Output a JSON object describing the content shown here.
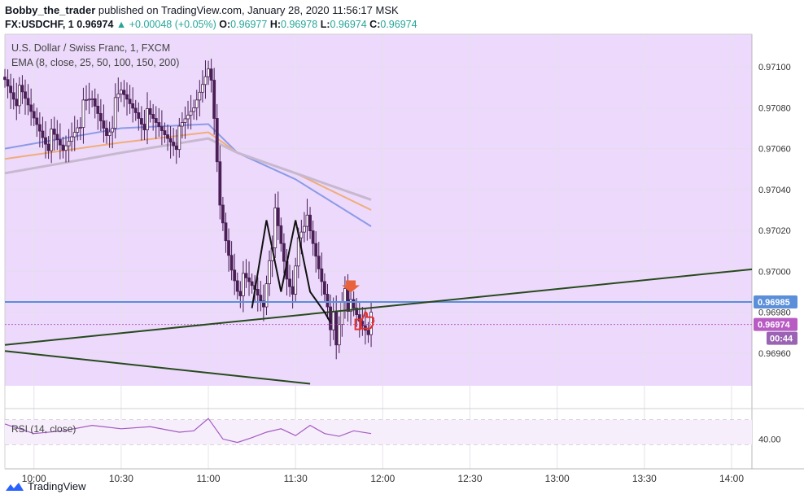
{
  "header": {
    "author": "Bobby_the_trader",
    "published_text": " published on TradingView.com, January 28, 2020 11:56:17 MSK",
    "symbol": "FX:USDCHF, 1",
    "last": "0.96974",
    "change": "▲ +0.00048 (+0.05%)",
    "o_label": "O:",
    "o": "0.96977",
    "h_label": "H:",
    "h": "0.96978",
    "l_label": "L:",
    "l": "0.96974",
    "c_label": "C:",
    "c": "0.96974"
  },
  "legend": {
    "instrument": "U.S. Dollar / Swiss Franc, 1, FXCM",
    "ema": "EMA (8, close, 25, 50, 100, 150, 200)",
    "rsi": "RSI (14, close)"
  },
  "price_badges": {
    "blue_line": "0.96985",
    "last_price": "0.96974",
    "countdown": "00:44"
  },
  "footer": {
    "brand": "TradingView"
  },
  "colors": {
    "background": "#ffffff",
    "session_shade": "#ecd9fb",
    "candle": "#4a1f56",
    "trendline": "#274a1d",
    "horizontal": "#5b8fd9",
    "last_price": "#b85cc4",
    "ema_blue": "#8c9ae8",
    "ema_orange": "#f0ad7a",
    "ema_gray": "#c7b8cf",
    "rsi": "#a35bc1",
    "arrow": "#e8623c",
    "thumb": "#e23030"
  },
  "icons": [
    "down-arrow-icon",
    "thumbs-up-icon",
    "tradingview-logo-icon"
  ],
  "chart_data": {
    "type": "candlestick",
    "title": "U.S. Dollar / Swiss Franc, 1, FXCM",
    "x_ticks": [
      "10:00",
      "10:30",
      "11:00",
      "11:30",
      "12:00",
      "12:30",
      "13:00",
      "13:30",
      "14:00"
    ],
    "y_ticks": [
      0.9696,
      0.9698,
      0.97,
      0.9702,
      0.9704,
      0.9706,
      0.9708,
      0.971
    ],
    "y_ticks_labels": [
      "0.96960",
      "0.96980",
      "0.97000",
      "0.97020",
      "0.97040",
      "0.97060",
      "0.97080",
      "0.97100"
    ],
    "ylim": [
      0.96944,
      0.97116
    ],
    "xlim": [
      "09:50",
      "14:07"
    ],
    "close_series": {
      "times": [
        "09:50",
        "10:00",
        "10:05",
        "10:10",
        "10:15",
        "10:20",
        "10:25",
        "10:30",
        "10:35",
        "10:40",
        "10:45",
        "10:50",
        "10:55",
        "11:00",
        "11:02",
        "11:04",
        "11:06",
        "11:08",
        "11:10",
        "11:13",
        "11:16",
        "11:19",
        "11:21",
        "11:23",
        "11:25",
        "11:27",
        "11:29",
        "11:31",
        "11:33",
        "11:35",
        "11:37",
        "11:39",
        "11:41",
        "11:42",
        "11:43",
        "11:44",
        "11:45",
        "11:46",
        "11:47",
        "11:48",
        "11:49",
        "11:50",
        "11:52",
        "11:54",
        "11:56"
      ],
      "values": [
        0.97095,
        0.97075,
        0.97065,
        0.97058,
        0.97075,
        0.97082,
        0.9707,
        0.97085,
        0.9708,
        0.97072,
        0.97068,
        0.97065,
        0.9708,
        0.97105,
        0.9707,
        0.9703,
        0.97015,
        0.97003,
        0.96995,
        0.96992,
        0.9699,
        0.96985,
        0.9701,
        0.97025,
        0.9701,
        0.96995,
        0.9699,
        0.9702,
        0.97028,
        0.97015,
        0.97005,
        0.96995,
        0.96985,
        0.96975,
        0.96985,
        0.9697,
        0.96968,
        0.9698,
        0.96988,
        0.96978,
        0.96985,
        0.96982,
        0.96978,
        0.96976,
        0.96974
      ]
    },
    "ema_series": [
      {
        "color": "#8c9ae8",
        "times": [
          "09:50",
          "10:30",
          "11:00",
          "11:10",
          "11:30",
          "11:56"
        ],
        "values": [
          0.9706,
          0.9707,
          0.97072,
          0.97058,
          0.97045,
          0.97022
        ]
      },
      {
        "color": "#f0ad7a",
        "times": [
          "09:50",
          "10:30",
          "11:00",
          "11:10",
          "11:30",
          "11:56"
        ],
        "values": [
          0.97055,
          0.97063,
          0.97068,
          0.97058,
          0.97048,
          0.9703
        ]
      },
      {
        "color": "#c7b8cf",
        "times": [
          "09:50",
          "10:30",
          "11:00",
          "11:10",
          "11:30",
          "11:56"
        ],
        "values": [
          0.97048,
          0.97058,
          0.97065,
          0.97058,
          0.97048,
          0.97035
        ]
      }
    ],
    "horizontal_line": 0.96985,
    "last_price": 0.96974,
    "trendlines": [
      {
        "t1": "09:50",
        "p1": 0.96964,
        "t2": "14:07",
        "p2": 0.97001
      },
      {
        "t1": "09:50",
        "p1": 0.96961,
        "t2": "11:35",
        "p2": 0.96945
      }
    ],
    "pattern_line": {
      "times": [
        "11:15",
        "11:20",
        "11:25",
        "11:30",
        "11:35",
        "11:40",
        "11:42"
      ],
      "values": [
        0.96982,
        0.97025,
        0.9699,
        0.97025,
        0.9699,
        0.9698,
        0.96975
      ]
    },
    "rsi": {
      "label": "RSI (14, close)",
      "y_tick": "40.00",
      "times": [
        "09:50",
        "10:00",
        "10:10",
        "10:20",
        "10:30",
        "10:40",
        "10:50",
        "10:55",
        "11:00",
        "11:05",
        "11:10",
        "11:15",
        "11:20",
        "11:25",
        "11:30",
        "11:35",
        "11:40",
        "11:45",
        "11:50",
        "11:56"
      ],
      "values": [
        62,
        48,
        52,
        60,
        55,
        58,
        50,
        52,
        70,
        40,
        35,
        42,
        50,
        55,
        45,
        60,
        48,
        44,
        52,
        48
      ]
    }
  }
}
